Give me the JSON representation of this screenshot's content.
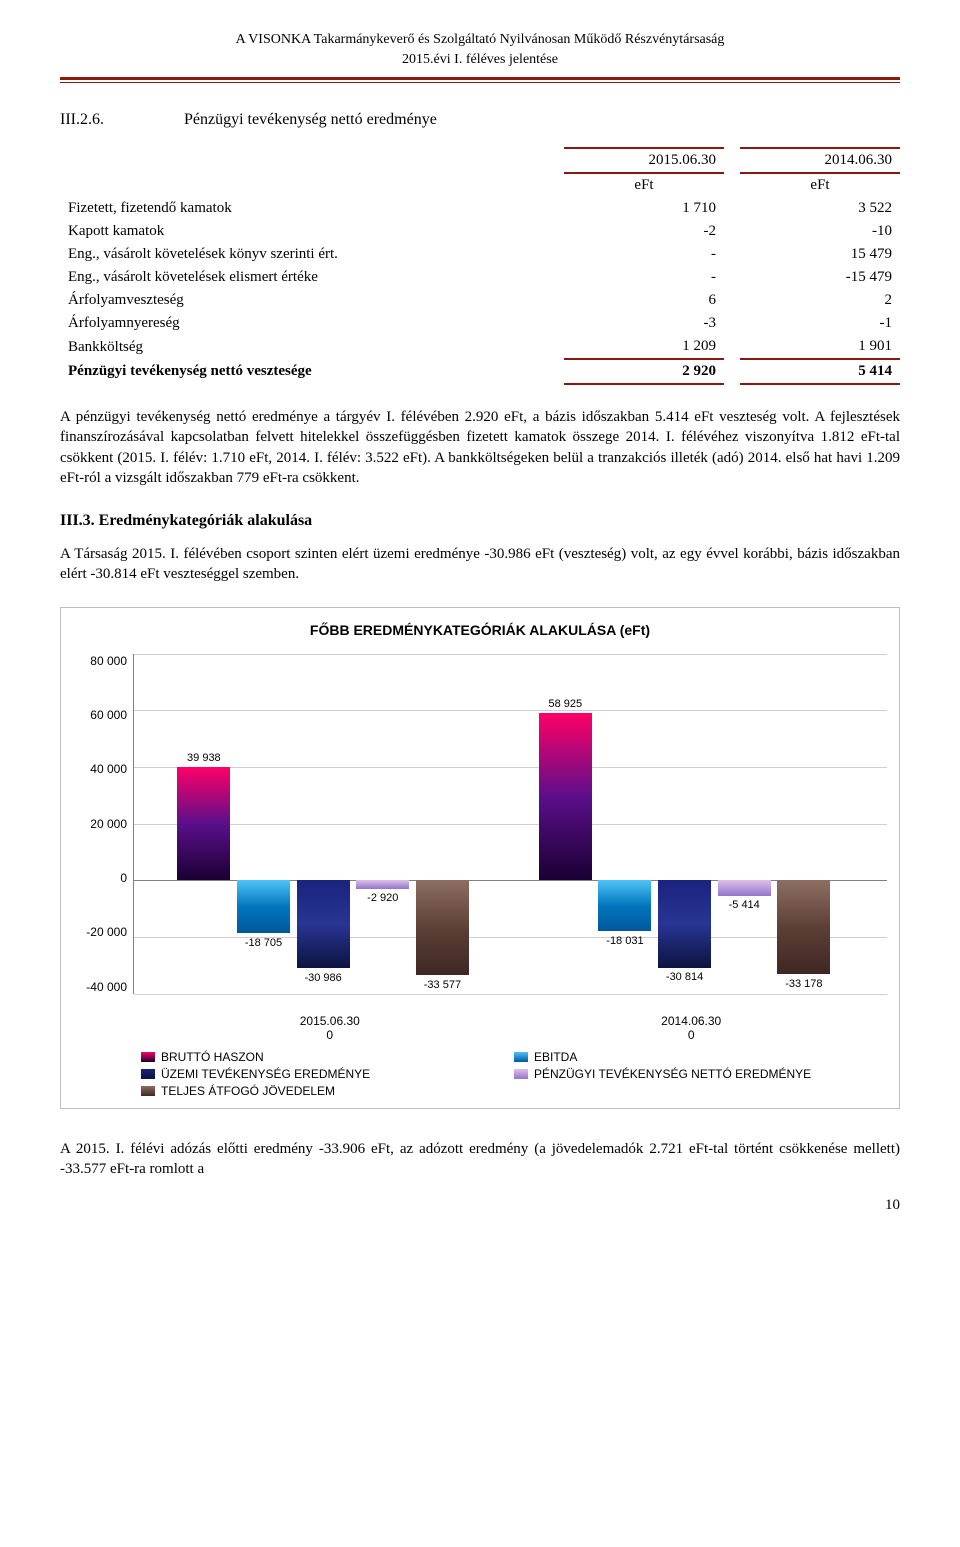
{
  "header": {
    "line1": "A VISONKA Takarmánykeverő és Szolgáltató Nyilvánosan Működő Részvénytársaság",
    "line2": "2015.évi I. féléves jelentése"
  },
  "section1": {
    "num": "III.2.6.",
    "title": "Pénzügyi tevékenység nettó eredménye"
  },
  "table1": {
    "col1": "2015.06.30",
    "col2": "2014.06.30",
    "unit": "eFt",
    "rows": [
      {
        "label": "Fizetett, fizetendő kamatok",
        "c1": "1 710",
        "c2": "3 522"
      },
      {
        "label": "Kapott kamatok",
        "c1": "-2",
        "c2": "-10"
      },
      {
        "label": "Eng., vásárolt követelések könyv szerinti ért.",
        "c1": "-",
        "c2": "15 479"
      },
      {
        "label": "Eng., vásárolt követelések elismert értéke",
        "c1": "-",
        "c2": "-15 479"
      },
      {
        "label": "Árfolyamveszteség",
        "c1": "6",
        "c2": "2"
      },
      {
        "label": "Árfolyamnyereség",
        "c1": "-3",
        "c2": "-1"
      },
      {
        "label": "Bankköltség",
        "c1": "1 209",
        "c2": "1 901"
      }
    ],
    "sum": {
      "label": "Pénzügyi tevékenység nettó vesztesége",
      "c1": "2 920",
      "c2": "5 414"
    }
  },
  "para1": "A pénzügyi tevékenység nettó eredménye a tárgyév I. félévében 2.920 eFt, a bázis időszakban 5.414 eFt veszteség volt. A fejlesztések finanszírozásával kapcsolatban felvett hitelekkel összefüggésben fizetett kamatok összege 2014. I. félévéhez viszonyítva 1.812 eFt-tal csökkent (2015. I. félév: 1.710 eFt, 2014. I. félév: 3.522 eFt). A bankköltségeken belül a  tranzakciós illeték (adó) 2014. első hat havi 1.209 eFt-ról a vizsgált időszakban 779 eFt-ra csökkent.",
  "section2": {
    "title": "III.3. Eredménykategóriák alakulása"
  },
  "para2": "A Társaság 2015. I. félévében csoport szinten elért üzemi eredménye -30.986 eFt (veszteség) volt, az egy évvel korábbi, bázis időszakban elért -30.814 eFt veszteséggel szemben.",
  "chart": {
    "title": "FŐBB EREDMÉNYKATEGÓRIÁK ALAKULÁSA (eFt)",
    "ymin": -40000,
    "ymax": 80000,
    "ystep": 20000,
    "ylabels": [
      "80 000",
      "60 000",
      "40 000",
      "20 000",
      "0",
      "-20 000",
      "-40 000"
    ],
    "groups": [
      {
        "xlabel": "2015.06.30\n0",
        "bars": [
          {
            "series": 0,
            "value": 39938,
            "label": "39 938"
          },
          {
            "series": 1,
            "value": -18705,
            "label": "-18 705"
          },
          {
            "series": 2,
            "value": -30986,
            "label": "-30 986"
          },
          {
            "series": 3,
            "value": -2920,
            "label": "-2 920"
          },
          {
            "series": 4,
            "value": -33577,
            "label": "-33 577"
          }
        ]
      },
      {
        "xlabel": "2014.06.30\n0",
        "bars": [
          {
            "series": 0,
            "value": 58925,
            "label": "58 925"
          },
          {
            "series": 1,
            "value": -18031,
            "label": "-18 031"
          },
          {
            "series": 2,
            "value": -30814,
            "label": "-30 814"
          },
          {
            "series": 3,
            "value": -5414,
            "label": "-5 414"
          },
          {
            "series": 4,
            "value": -33178,
            "label": "-33 178"
          }
        ]
      }
    ],
    "series": [
      {
        "name": "BRUTTÓ HASZON",
        "gradient": [
          "#ff0066",
          "#5b0f8a",
          "#1a0033"
        ]
      },
      {
        "name": "EBITDA",
        "gradient": [
          "#4fc3f7",
          "#0277bd",
          "#01579b"
        ]
      },
      {
        "name": "ÜZEMI TEVÉKENYSÉG EREDMÉNYE",
        "gradient": [
          "#1a237e",
          "#283593",
          "#0d1340"
        ]
      },
      {
        "name": "PÉNZÜGYI TEVÉKENYSÉG NETTÓ EREDMÉNYE",
        "gradient": [
          "#e1bee7",
          "#b39ddb",
          "#9575cd"
        ]
      },
      {
        "name": "TELJES ÁTFOGÓ JÖVEDELEM",
        "gradient": [
          "#8d6e63",
          "#5d4037",
          "#3e2723"
        ]
      }
    ],
    "bar_width_pct": 16,
    "background": "#ffffff",
    "grid_color": "#d0d0d0"
  },
  "para3": "A 2015. I. félévi adózás előtti eredmény -33.906 eFt, az adózott eredmény (a jövedelemadók 2.721 eFt-tal történt csökkenése mellett) -33.577 eFt-ra romlott a",
  "page_num": "10"
}
